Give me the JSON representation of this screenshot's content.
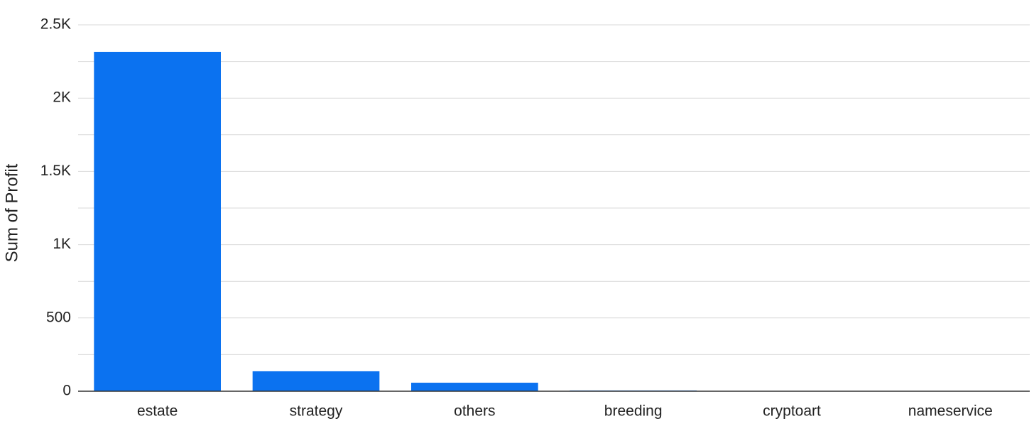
{
  "chart_data": {
    "type": "bar",
    "y_label": "Sum of Profit",
    "categories": [
      "estate",
      "strategy",
      "others",
      "breeding",
      "cryptoart",
      "nameservice"
    ],
    "values": [
      2316,
      136,
      58,
      5,
      0,
      2
    ],
    "color": "#0b72f0",
    "ylim": [
      0,
      2500
    ],
    "yticks": [
      0,
      500,
      {
        "value": 1000,
        "label": "1K"
      },
      {
        "value": 1500,
        "label": "1.5K"
      },
      {
        "value": 2000,
        "label": "2K"
      },
      {
        "value": 2500,
        "label": "2.5K"
      }
    ],
    "minor_grid": [
      250,
      750,
      1250,
      1750,
      2250
    ],
    "grid": true
  }
}
